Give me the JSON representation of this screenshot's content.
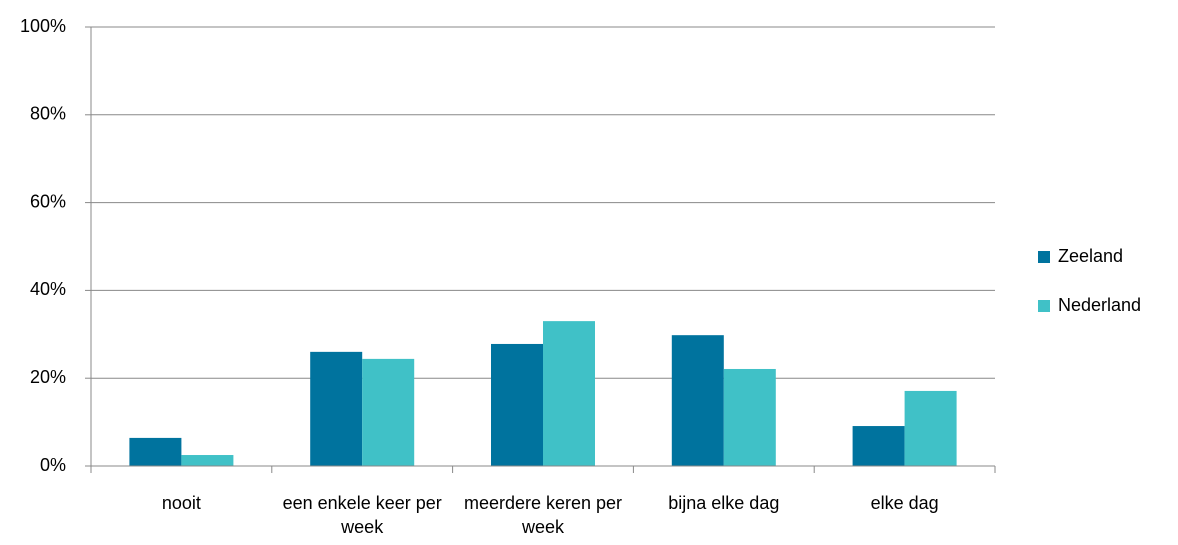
{
  "chart_data": {
    "type": "bar",
    "categories": [
      "nooit",
      "een enkele keer per week",
      "meerdere keren per week",
      "bijna elke dag",
      "elke dag"
    ],
    "series": [
      {
        "name": "Zeeland",
        "color": "#00739e",
        "values": [
          6.4,
          26,
          27.8,
          29.8,
          9.1
        ]
      },
      {
        "name": "Nederland",
        "color": "#40c1c7",
        "values": [
          2.5,
          24.4,
          33,
          22.1,
          17.1
        ]
      }
    ],
    "ylim": [
      0,
      100
    ],
    "yticks": [
      {
        "value": 0,
        "label": "0%"
      },
      {
        "value": 20,
        "label": "20%"
      },
      {
        "value": 40,
        "label": "40%"
      },
      {
        "value": 60,
        "label": "60%"
      },
      {
        "value": 80,
        "label": "80%"
      },
      {
        "value": 100,
        "label": "100%"
      }
    ],
    "grid": true,
    "legend": "right"
  }
}
